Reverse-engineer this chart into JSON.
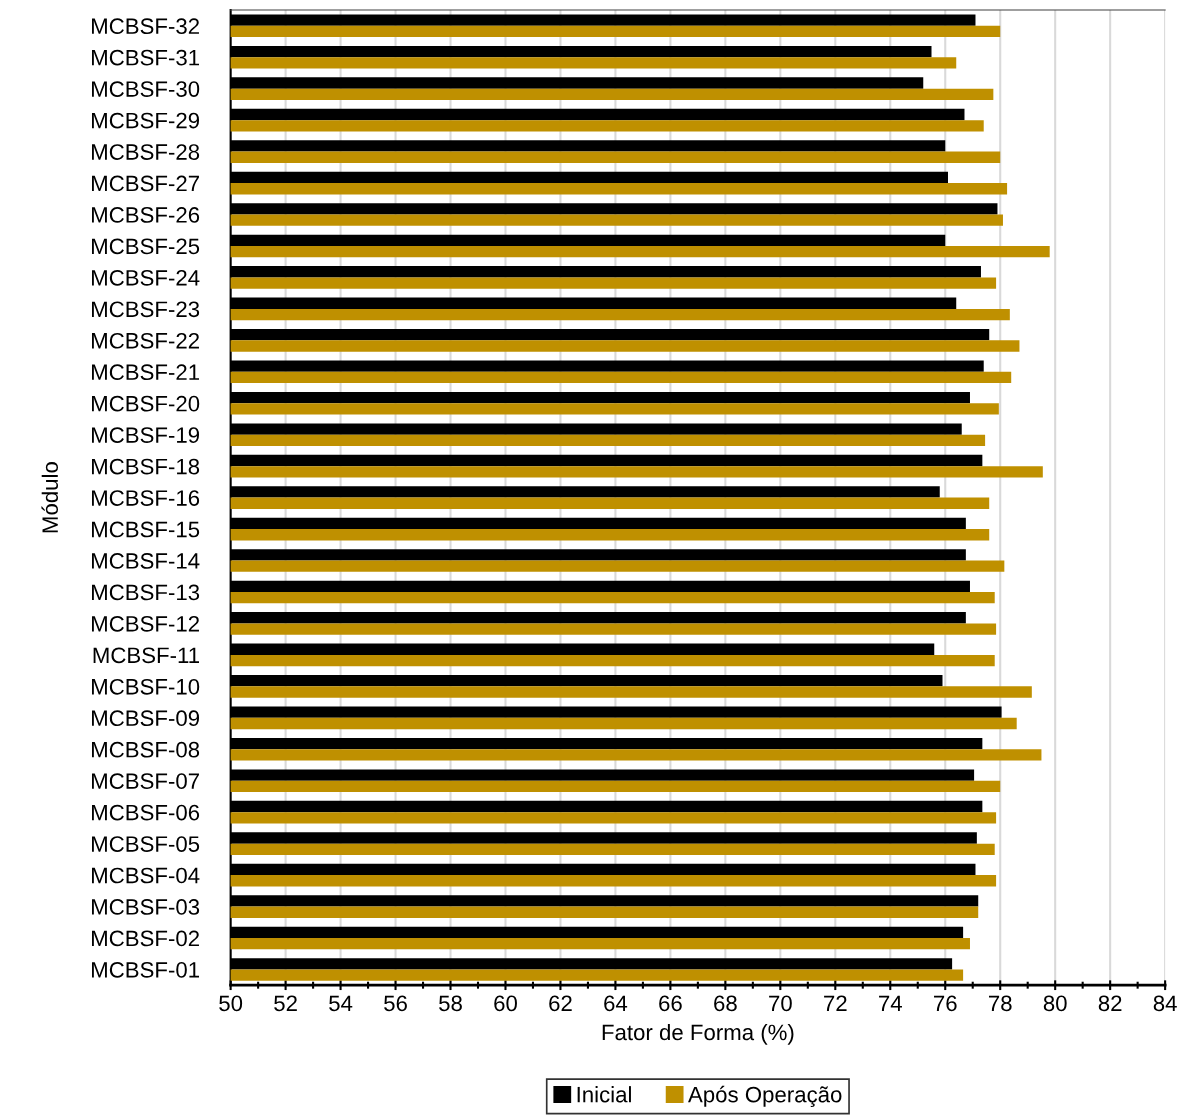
{
  "chart_data": {
    "type": "bar",
    "orientation": "horizontal",
    "xlabel": "Fator de Forma (%)",
    "ylabel": "Módulo",
    "categories": [
      "MCBSF-32",
      "MCBSF-31",
      "MCBSF-30",
      "MCBSF-29",
      "MCBSF-28",
      "MCBSF-27",
      "MCBSF-26",
      "MCBSF-25",
      "MCBSF-24",
      "MCBSF-23",
      "MCBSF-22",
      "MCBSF-21",
      "MCBSF-20",
      "MCBSF-19",
      "MCBSF-18",
      "MCBSF-16",
      "MCBSF-15",
      "MCBSF-14",
      "MCBSF-13",
      "MCBSF-12",
      "MCBSF-11",
      "MCBSF-10",
      "MCBSF-09",
      "MCBSF-08",
      "MCBSF-07",
      "MCBSF-06",
      "MCBSF-05",
      "MCBSF-04",
      "MCBSF-03",
      "MCBSF-02",
      "MCBSF-01"
    ],
    "series": [
      {
        "name": "Inicial",
        "color": "#000000",
        "values": [
          77.1,
          75.5,
          75.2,
          76.7,
          76.0,
          76.1,
          77.9,
          76.0,
          77.3,
          76.4,
          77.6,
          77.4,
          76.9,
          76.6,
          77.35,
          75.8,
          76.75,
          76.75,
          76.9,
          76.75,
          75.6,
          75.9,
          78.05,
          77.35,
          77.05,
          77.35,
          77.15,
          77.1,
          77.2,
          76.65,
          76.25
        ]
      },
      {
        "name": "Após Operação",
        "color": "#bf9000",
        "values": [
          78.0,
          76.4,
          77.75,
          77.4,
          78.0,
          78.25,
          78.1,
          79.8,
          77.85,
          78.35,
          78.7,
          78.4,
          77.95,
          77.45,
          79.55,
          77.6,
          77.6,
          78.15,
          77.8,
          77.85,
          77.8,
          79.15,
          78.6,
          79.5,
          78.0,
          77.85,
          77.8,
          77.85,
          77.2,
          76.9,
          76.65
        ]
      }
    ],
    "xlim": [
      50,
      84
    ],
    "xticks": [
      50,
      {
        "value": 51,
        "label": null
      },
      52,
      {
        "value": 53,
        "label": null
      },
      54,
      {
        "value": 55,
        "label": null
      },
      56,
      {
        "value": 57,
        "label": null
      },
      58,
      {
        "value": 59,
        "label": null
      },
      60,
      {
        "value": 61,
        "label": null
      },
      62,
      {
        "value": 63,
        "label": null
      },
      64,
      {
        "value": 65,
        "label": null
      },
      66,
      {
        "value": 67,
        "label": null
      },
      68,
      {
        "value": 69,
        "label": null
      },
      70,
      {
        "value": 71,
        "label": null
      },
      72,
      {
        "value": 73,
        "label": null
      },
      74,
      {
        "value": 75,
        "label": null
      },
      76,
      {
        "value": 77,
        "label": null
      },
      78,
      {
        "value": 79,
        "label": null
      },
      80,
      {
        "value": 81,
        "label": null
      },
      82,
      {
        "value": 83,
        "label": null
      },
      84
    ],
    "grid": "x",
    "legend": "bottom"
  }
}
